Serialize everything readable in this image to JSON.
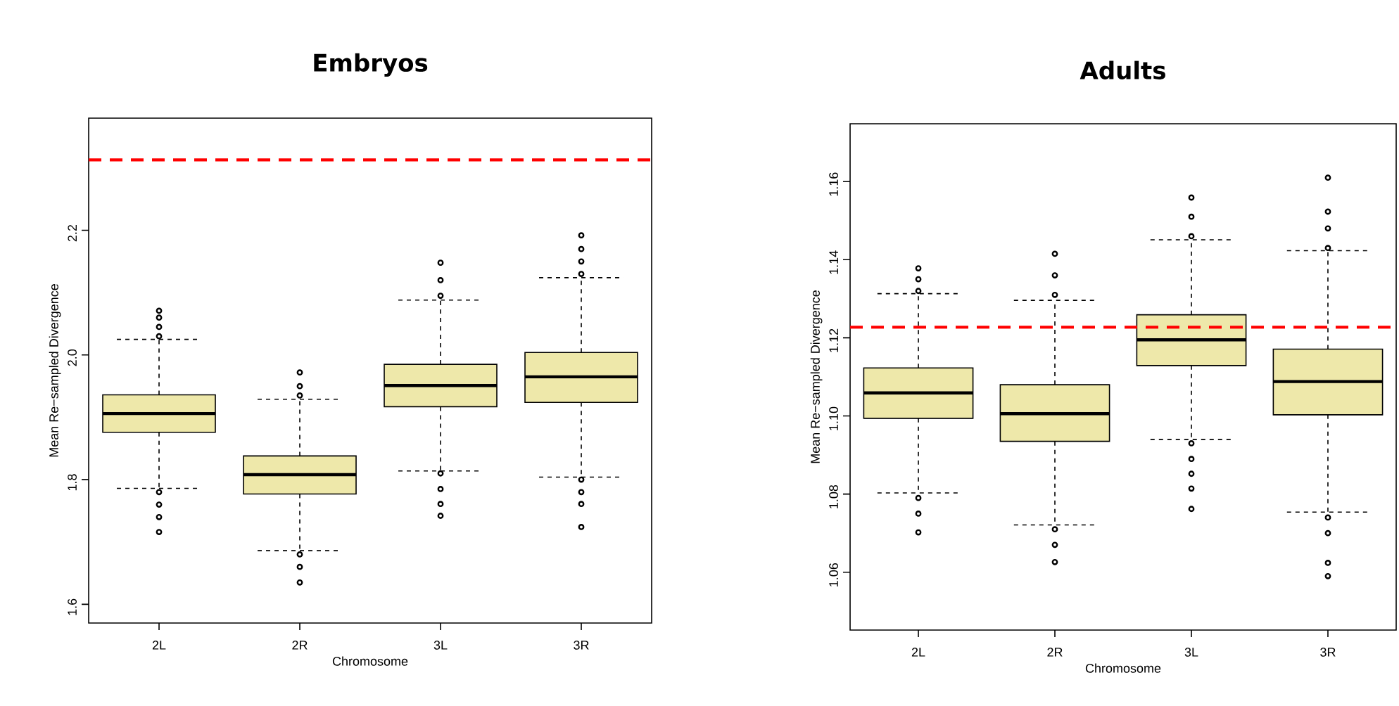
{
  "chart_data": [
    {
      "type": "box",
      "title": "Embryos",
      "xlabel": "Chromosome",
      "ylabel": "Mean Re−sampled Divergence",
      "categories": [
        "2L",
        "2R",
        "3L",
        "3R"
      ],
      "series": [
        {
          "color": "#eee8aa",
          "boxes": [
            {
              "low": 1.786,
              "q1": 1.876,
              "median": 1.906,
              "q3": 1.936,
              "high": 2.025,
              "outliers": [
                2.03,
                2.045,
                2.06,
                2.071,
                1.78,
                1.76,
                1.74,
                1.716
              ]
            },
            {
              "low": 1.686,
              "q1": 1.777,
              "median": 1.808,
              "q3": 1.838,
              "high": 1.929,
              "outliers": [
                1.935,
                1.95,
                1.972,
                1.68,
                1.66,
                1.635
              ]
            },
            {
              "low": 1.814,
              "q1": 1.917,
              "median": 1.951,
              "q3": 1.985,
              "high": 2.088,
              "outliers": [
                2.095,
                2.12,
                2.148,
                1.81,
                1.785,
                1.761,
                1.742
              ]
            },
            {
              "low": 1.804,
              "q1": 1.924,
              "median": 1.965,
              "q3": 2.004,
              "high": 2.124,
              "outliers": [
                2.13,
                2.15,
                2.17,
                2.192,
                1.8,
                1.78,
                1.761,
                1.724
              ]
            }
          ]
        }
      ],
      "ylim": [
        1.57,
        2.38
      ],
      "yticks": [
        1.6,
        1.8,
        {
          "value": 2.0,
          "label": "2.0"
        },
        2.2
      ],
      "ref_lines": [
        {
          "axis": "y",
          "value": 2.313,
          "color": "#ff0000",
          "line_style": "dashed"
        }
      ]
    },
    {
      "type": "box",
      "title": "Adults",
      "xlabel": "Chromosome",
      "ylabel": "Mean Re−sampled Divergence",
      "categories": [
        "2L",
        "2R",
        "3L",
        "3R"
      ],
      "series": [
        {
          "color": "#eee8aa",
          "boxes": [
            {
              "low": 1.0803,
              "q1": 1.0994,
              "median": 1.1059,
              "q3": 1.1123,
              "high": 1.1313,
              "outliers": [
                1.132,
                1.135,
                1.1378,
                1.079,
                1.075,
                1.0702
              ]
            },
            {
              "low": 1.0721,
              "q1": 1.0935,
              "median": 1.1006,
              "q3": 1.108,
              "high": 1.1296,
              "outliers": [
                1.131,
                1.136,
                1.1415,
                1.071,
                1.067,
                1.0626
              ]
            },
            {
              "low": 1.094,
              "q1": 1.1129,
              "median": 1.1195,
              "q3": 1.1259,
              "high": 1.1451,
              "outliers": [
                1.146,
                1.151,
                1.1559,
                1.093,
                1.089,
                1.0852,
                1.0814,
                1.0762
              ]
            },
            {
              "low": 1.0754,
              "q1": 1.1003,
              "median": 1.1088,
              "q3": 1.1171,
              "high": 1.1423,
              "outliers": [
                1.143,
                1.148,
                1.1523,
                1.161,
                1.074,
                1.07,
                1.0624,
                1.059
              ]
            }
          ]
        }
      ],
      "ylim": [
        1.0452,
        1.1748
      ],
      "yticks": [
        1.06,
        1.08,
        {
          "value": 1.1,
          "label": "1.10"
        },
        1.12,
        1.14,
        1.16
      ],
      "ref_lines": [
        {
          "axis": "y",
          "value": 1.1227,
          "color": "#ff0000",
          "line_style": "dashed"
        }
      ]
    }
  ]
}
